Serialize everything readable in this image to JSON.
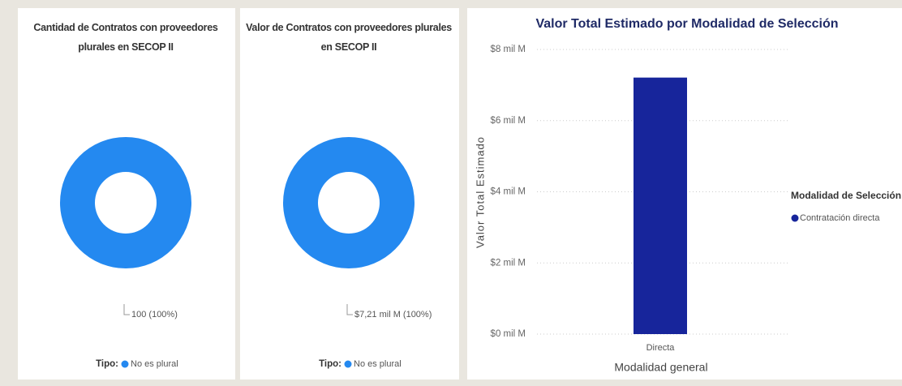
{
  "chart_data": [
    {
      "type": "donut",
      "title": "Cantidad de Contratos con proveedores plurales en SECOP II",
      "legend_title": "Tipo:",
      "categories": [
        "No es plural"
      ],
      "values": [
        100
      ],
      "value_labels": [
        "100 (100%)"
      ],
      "colors": [
        "#2489f0"
      ]
    },
    {
      "type": "donut",
      "title": "Valor de Contratos con proveedores plurales en SECOP II",
      "legend_title": "Tipo:",
      "categories": [
        "No es plural"
      ],
      "values": [
        7210000000
      ],
      "value_labels": [
        "$7,21 mil M (100%)"
      ],
      "colors": [
        "#2489f0"
      ]
    },
    {
      "type": "bar",
      "title": "Valor Total Estimado por Modalidad de Selección",
      "xlabel": "Modalidad general",
      "ylabel": "Valor Total Estimado",
      "legend_title": "Modalidad de Selección",
      "categories": [
        "Directa"
      ],
      "series": [
        {
          "name": "Contratación directa",
          "color": "#17259b",
          "values": [
            7210000000
          ]
        }
      ],
      "ylim": [
        0,
        8000000000
      ],
      "yticks": [
        {
          "value": 0,
          "label": "$0 mil M"
        },
        {
          "value": 2000000000,
          "label": "$2 mil M"
        },
        {
          "value": 4000000000,
          "label": "$4 mil M"
        },
        {
          "value": 6000000000,
          "label": "$6 mil M"
        },
        {
          "value": 8000000000,
          "label": "$8 mil M"
        }
      ],
      "grid": true
    }
  ]
}
